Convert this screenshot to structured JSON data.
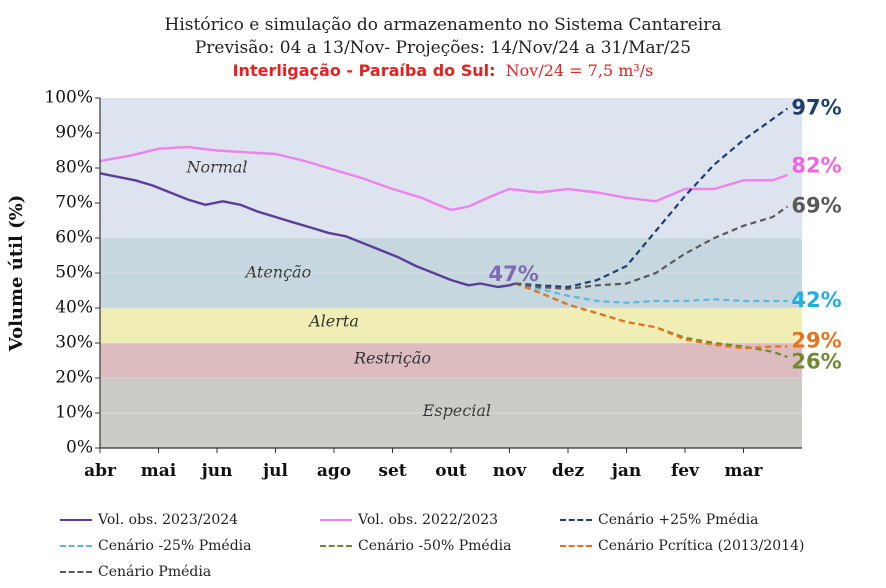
{
  "title": {
    "line1": "Histórico e simulação do armazenamento no Sistema Cantareira",
    "line2": "Previsão: 04 a 13/Nov-  Projeções: 14/Nov/24 a 31/Mar/25",
    "line3_bold": "Interligação - Paraíba do Sul:",
    "line3_rest": "Nov/24 = 7,5 m³/s"
  },
  "chart_data": {
    "type": "line",
    "ylabel": "Volume útil (%)",
    "ylim": [
      0,
      100
    ],
    "yticks": [
      "0%",
      "10%",
      "20%",
      "30%",
      "40%",
      "50%",
      "60%",
      "70%",
      "80%",
      "90%",
      "100%"
    ],
    "xticks": [
      "abr",
      "mai",
      "jun",
      "jul",
      "ago",
      "set",
      "out",
      "nov",
      "dez",
      "jan",
      "fev",
      "mar"
    ],
    "zones": [
      {
        "name": "Normal",
        "from": 60,
        "to": 100,
        "color": "#dde3ef"
      },
      {
        "name": "Atenção",
        "from": 40,
        "to": 60,
        "color": "#c6d7e0"
      },
      {
        "name": "Alerta",
        "from": 30,
        "to": 40,
        "color": "#f0eeb4"
      },
      {
        "name": "Restrição",
        "from": 20,
        "to": 30,
        "color": "#dcbcbe"
      },
      {
        "name": "Especial",
        "from": 0,
        "to": 20,
        "color": "#cdcbc6"
      }
    ],
    "series": [
      {
        "name": "Vol. obs. 2023/2024",
        "color": "#5b3e98",
        "dash": "solid",
        "x": [
          0,
          0.3,
          0.6,
          0.9,
          1.2,
          1.5,
          1.8,
          2.1,
          2.4,
          2.7,
          3.0,
          3.3,
          3.6,
          3.9,
          4.2,
          4.5,
          4.8,
          5.1,
          5.4,
          5.7,
          6.0,
          6.3,
          6.5,
          6.8,
          7.0,
          7.1
        ],
        "y": [
          78.5,
          77.5,
          76.5,
          75,
          73,
          71,
          69.5,
          70.5,
          69.5,
          67.5,
          66,
          64.5,
          63,
          61.5,
          60.5,
          58.5,
          56.5,
          54.5,
          52,
          50,
          48,
          46.5,
          47,
          46,
          46.5,
          47
        ]
      },
      {
        "name": "Vol. obs. 2022/2023",
        "color": "#ee82ee",
        "dash": "solid",
        "x": [
          0,
          0.5,
          1.0,
          1.5,
          2.0,
          2.5,
          3.0,
          3.5,
          4.0,
          4.5,
          5.0,
          5.5,
          5.7,
          6.0,
          6.3,
          6.7,
          7.0,
          7.5,
          8.0,
          8.5,
          9.0,
          9.5,
          10.0,
          10.5,
          11.0,
          11.5,
          11.75
        ],
        "y": [
          82,
          83.5,
          85.5,
          86,
          85,
          84.5,
          84,
          82,
          79.5,
          77,
          74,
          71.5,
          70,
          68,
          69,
          72,
          74,
          73,
          74,
          73,
          71.5,
          70.5,
          74,
          74,
          76.5,
          76.5,
          78
        ]
      },
      {
        "name": "Cenário +25% Pmédia",
        "color": "#1f3f6b",
        "dash": "dashed",
        "x": [
          7.1,
          7.5,
          8.0,
          8.5,
          9.0,
          9.5,
          10.0,
          10.5,
          11.0,
          11.5,
          11.75
        ],
        "y": [
          47,
          46.5,
          46,
          48,
          52,
          62,
          72,
          81,
          88,
          94,
          97
        ]
      },
      {
        "name": "Cenário -25% Pmédia",
        "color": "#5cb8d9",
        "dash": "dashed",
        "x": [
          7.1,
          7.5,
          8.0,
          8.5,
          9.0,
          9.5,
          10.0,
          10.5,
          11.0,
          11.5,
          11.75
        ],
        "y": [
          47,
          45.5,
          43.5,
          42,
          41.5,
          42,
          42,
          42.5,
          42,
          42,
          42
        ]
      },
      {
        "name": "Cenário -50% Pmédia",
        "color": "#6f8a2f",
        "dash": "dashed",
        "x": [
          7.1,
          7.5,
          8.0,
          8.5,
          9.0,
          9.5,
          10.0,
          10.5,
          11.0,
          11.5,
          11.75
        ],
        "y": [
          47,
          44.5,
          41,
          38.5,
          36,
          34.5,
          31.5,
          30,
          29,
          27.5,
          26
        ]
      },
      {
        "name": "Cenário Pcrítica (2013/2014)",
        "color": "#e8731c",
        "dash": "dashed",
        "x": [
          7.1,
          7.5,
          8.0,
          8.5,
          9.0,
          9.5,
          10.0,
          10.5,
          11.0,
          11.5,
          11.75
        ],
        "y": [
          47,
          44.5,
          41,
          38.5,
          36,
          34.5,
          31,
          29.5,
          28.5,
          29,
          29
        ]
      },
      {
        "name": "Cenário Pmédia",
        "color": "#595959",
        "dash": "dashed",
        "x": [
          7.1,
          7.5,
          8.0,
          8.5,
          9.0,
          9.5,
          10.0,
          10.5,
          11.0,
          11.5,
          11.75
        ],
        "y": [
          47,
          46,
          45.5,
          46.5,
          47,
          50,
          55.5,
          60,
          63.5,
          66,
          69
        ]
      }
    ],
    "annotations": [
      {
        "text": "47%",
        "color": "#7e6ab0"
      },
      {
        "text": "97%",
        "color": "#1f3f6b"
      },
      {
        "text": "82%",
        "color": "#ee66dd"
      },
      {
        "text": "69%",
        "color": "#595959"
      },
      {
        "text": "42%",
        "color": "#1eaee0"
      },
      {
        "text": "29%",
        "color": "#e8731c"
      },
      {
        "text": "26%",
        "color": "#6f8a2f"
      }
    ]
  }
}
